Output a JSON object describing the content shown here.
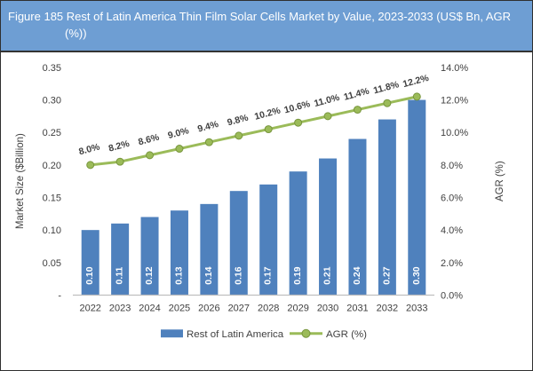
{
  "header": {
    "title_lines": [
      "Figure 185 Rest of Latin America Thin Film Solar Cells Market by Value, 2023-2033 (US$ Bn, AGR",
      "(%))"
    ]
  },
  "colors": {
    "header_bg": "#6E9ED3",
    "header_text": "#FFFFFF",
    "frame_border": "#2F2F2F",
    "bar": "#4F81BD",
    "line": "#9BBB59",
    "marker_stroke": "#77953C",
    "bar_label": "#FFFFFF",
    "tick_text": "#404040",
    "axis_line": "#BFBFBF"
  },
  "chart_data": {
    "type": "bar+line combo",
    "categories": [
      "2022",
      "2023",
      "2024",
      "2025",
      "2026",
      "2027",
      "2028",
      "2029",
      "2030",
      "2031",
      "2032",
      "2033"
    ],
    "series": [
      {
        "name": "Rest of Latin America",
        "type": "bar",
        "axis": "left",
        "values": [
          0.1,
          0.11,
          0.12,
          0.13,
          0.14,
          0.16,
          0.17,
          0.19,
          0.21,
          0.24,
          0.27,
          0.3
        ],
        "labels": [
          "0.10",
          "0.11",
          "0.12",
          "0.13",
          "0.14",
          "0.16",
          "0.17",
          "0.19",
          "0.21",
          "0.24",
          "0.27",
          "0.30"
        ]
      },
      {
        "name": "AGR (%)",
        "type": "line",
        "axis": "right",
        "values": [
          8.0,
          8.2,
          8.6,
          9.0,
          9.4,
          9.8,
          10.2,
          10.6,
          11.0,
          11.4,
          11.8,
          12.2
        ],
        "labels": [
          "8.0%",
          "8.2%",
          "8.6%",
          "9.0%",
          "9.4%",
          "9.8%",
          "10.2%",
          "10.6%",
          "11.0%",
          "11.4%",
          "11.8%",
          "12.2%"
        ]
      }
    ],
    "left_axis": {
      "title": "Market Size ($Billion)",
      "min": 0,
      "max": 0.35,
      "tick_labels": [
        "0.35",
        "0.30",
        "0.25",
        "0.20",
        "0.15",
        "0.10",
        "0.05",
        "-"
      ]
    },
    "right_axis": {
      "title": "AGR (%)",
      "min": 0,
      "max": 14,
      "tick_labels": [
        "14.0%",
        "12.0%",
        "10.0%",
        "8.0%",
        "6.0%",
        "4.0%",
        "2.0%",
        "0.0%"
      ]
    },
    "legend": [
      "Rest of Latin America",
      "AGR (%)"
    ],
    "grid": false,
    "legend_position": "bottom-center"
  }
}
